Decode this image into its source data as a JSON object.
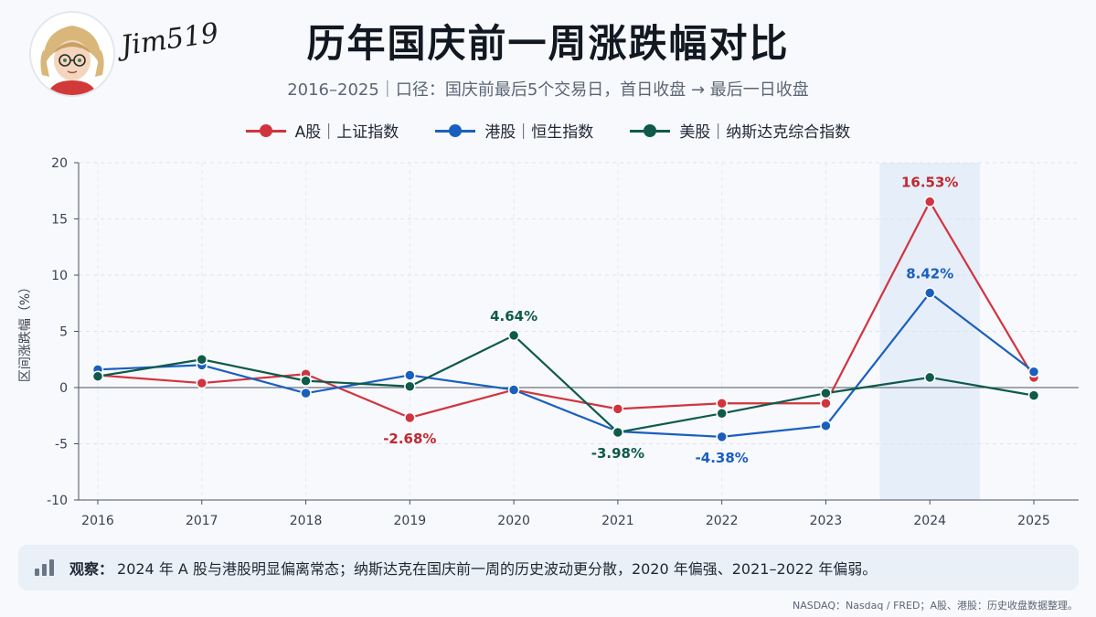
{
  "header": {
    "signature": "Jim519",
    "title": "历年国庆前一周涨跌幅对比",
    "subtitle": "2016–2025｜口径：国庆前最后5个交易日，首日收盘 → 最后一日收盘"
  },
  "legend": [
    {
      "label": "A股｜上证指数",
      "color": "#d1343f"
    },
    {
      "label": "港股｜恒生指数",
      "color": "#1a5fbf"
    },
    {
      "label": "美股｜纳斯达克综合指数",
      "color": "#0f5a4a"
    }
  ],
  "chart_data": {
    "type": "line",
    "title": "历年国庆前一周涨跌幅对比",
    "ylabel": "区间涨跌幅（%）",
    "xlabel": "",
    "x": [
      "2016",
      "2017",
      "2018",
      "2019",
      "2020",
      "2021",
      "2022",
      "2023",
      "2024",
      "2025"
    ],
    "ylim": [
      -10,
      20
    ],
    "yticks": [
      -10,
      -5,
      0,
      5,
      10,
      15,
      20
    ],
    "grid": true,
    "legend_position": "top",
    "highlight_x": "2024",
    "series": [
      {
        "name": "A股｜上证指数",
        "color": "#d1343f",
        "values": [
          1.1,
          0.4,
          1.2,
          -2.68,
          -0.2,
          -1.9,
          -1.4,
          -1.4,
          16.53,
          0.9
        ]
      },
      {
        "name": "港股｜恒生指数",
        "color": "#1a5fbf",
        "values": [
          1.6,
          2.0,
          -0.5,
          1.1,
          -0.2,
          -3.9,
          -4.38,
          -3.4,
          8.42,
          1.4
        ]
      },
      {
        "name": "美股｜纳斯达克综合指数",
        "color": "#0f5a4a",
        "values": [
          1.0,
          2.5,
          0.6,
          0.1,
          4.64,
          -3.98,
          -2.3,
          -0.5,
          0.9,
          -0.7
        ]
      }
    ],
    "annotations": [
      {
        "x": "2024",
        "series": 0,
        "text": "16.53%",
        "color": "#c02830",
        "pos": "above"
      },
      {
        "x": "2024",
        "series": 1,
        "text": "8.42%",
        "color": "#1a5fbf",
        "pos": "above"
      },
      {
        "x": "2019",
        "series": 0,
        "text": "-2.68%",
        "color": "#c02830",
        "pos": "below"
      },
      {
        "x": "2020",
        "series": 2,
        "text": "4.64%",
        "color": "#0f5a4a",
        "pos": "above"
      },
      {
        "x": "2021",
        "series": 2,
        "text": "-3.98%",
        "color": "#0f5a4a",
        "pos": "below"
      },
      {
        "x": "2022",
        "series": 1,
        "text": "-4.38%",
        "color": "#1a5fbf",
        "pos": "below"
      }
    ]
  },
  "observation": {
    "label": "观察：",
    "text": "2024 年 A 股与港股明显偏离常态；纳斯达克在国庆前一周的历史波动更分散，2020 年偏强、2021–2022 年偏弱。"
  },
  "source": "NASDAQ：Nasdaq / FRED；A股、港股：历史收盘数据整理。"
}
